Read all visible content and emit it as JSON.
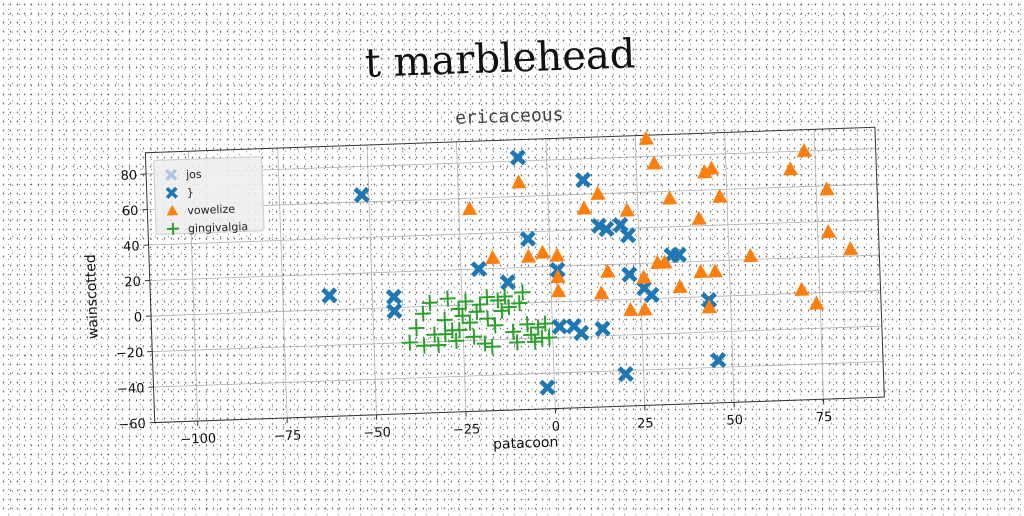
{
  "page": {
    "title": "t marblehead"
  },
  "chart_data": {
    "type": "scatter",
    "title": "ericaceous",
    "xlabel": "patacoon",
    "ylabel": "wainscotted",
    "xlim": [
      -112,
      92
    ],
    "ylim": [
      -60,
      92
    ],
    "xticks": [
      -100,
      -75,
      -50,
      -25,
      0,
      25,
      50,
      75
    ],
    "xtick_labels": [
      "−100",
      "−75",
      "−50",
      "−25",
      "0",
      "25",
      "50",
      "75"
    ],
    "yticks": [
      -60,
      -40,
      -20,
      0,
      20,
      40,
      60,
      80
    ],
    "ytick_labels": [
      "−60",
      "−40",
      "−20",
      "0",
      "20",
      "40",
      "60",
      "80"
    ],
    "grid": true,
    "legend_position": "upper-left",
    "series": [
      {
        "name": "jos",
        "color": "#aec7e8",
        "marker": "X",
        "points": []
      },
      {
        "name": "}",
        "color": "#1f77b4",
        "marker": "X",
        "points": [
          [
            -62,
            8
          ],
          [
            -52,
            64
          ],
          [
            -44,
            6
          ],
          [
            -44,
            -2
          ],
          [
            -20,
            20
          ],
          [
            -12,
            12
          ],
          [
            -8,
            82
          ],
          [
            -6,
            36
          ],
          [
            2,
            18
          ],
          [
            2,
            -14
          ],
          [
            6,
            -14
          ],
          [
            8,
            -18
          ],
          [
            10,
            68
          ],
          [
            14,
            -16
          ],
          [
            14,
            42
          ],
          [
            16,
            40
          ],
          [
            20,
            42
          ],
          [
            22,
            36
          ],
          [
            22,
            14
          ],
          [
            26,
            6
          ],
          [
            28,
            2
          ],
          [
            34,
            24
          ],
          [
            36,
            24
          ],
          [
            20,
            -42
          ],
          [
            44,
            -2
          ],
          [
            46,
            -36
          ],
          [
            -2,
            -48
          ]
        ]
      },
      {
        "name": "vowelize",
        "color": "#ff7f0e",
        "marker": "^",
        "points": [
          [
            -22,
            54
          ],
          [
            -16,
            26
          ],
          [
            -8,
            68
          ],
          [
            -6,
            26
          ],
          [
            -2,
            28
          ],
          [
            2,
            26
          ],
          [
            2,
            6
          ],
          [
            2,
            14
          ],
          [
            10,
            52
          ],
          [
            14,
            60
          ],
          [
            16,
            16
          ],
          [
            14,
            4
          ],
          [
            22,
            50
          ],
          [
            28,
            90
          ],
          [
            26,
            12
          ],
          [
            30,
            76
          ],
          [
            30,
            20
          ],
          [
            32,
            20
          ],
          [
            34,
            56
          ],
          [
            36,
            6
          ],
          [
            42,
            44
          ],
          [
            44,
            70
          ],
          [
            46,
            72
          ],
          [
            48,
            56
          ],
          [
            46,
            14
          ],
          [
            56,
            22
          ],
          [
            68,
            70
          ],
          [
            72,
            80
          ],
          [
            78,
            58
          ],
          [
            78,
            34
          ],
          [
            84,
            24
          ],
          [
            70,
            2
          ],
          [
            74,
            -6
          ],
          [
            22,
            -6
          ],
          [
            26,
            -6
          ],
          [
            42,
            14
          ],
          [
            44,
            -6
          ]
        ]
      },
      {
        "name": "gingivalgia",
        "color": "#2ca02c",
        "marker": "+",
        "points": [
          [
            -40,
            -20
          ],
          [
            -38,
            -12
          ],
          [
            -36,
            -4
          ],
          [
            -34,
            2
          ],
          [
            -33,
            -16
          ],
          [
            -32,
            -22
          ],
          [
            -30,
            -8
          ],
          [
            -29,
            4
          ],
          [
            -28,
            -14
          ],
          [
            -27,
            -20
          ],
          [
            -26,
            -2
          ],
          [
            -25,
            -6
          ],
          [
            -24,
            2
          ],
          [
            -23,
            -10
          ],
          [
            -22,
            -18
          ],
          [
            -21,
            -4
          ],
          [
            -20,
            0
          ],
          [
            -19,
            -22
          ],
          [
            -18,
            -8
          ],
          [
            -17,
            -24
          ],
          [
            -16,
            -12
          ],
          [
            -15,
            2
          ],
          [
            -14,
            -4
          ],
          [
            -13,
            4
          ],
          [
            -12,
            -2
          ],
          [
            -11,
            -16
          ],
          [
            -10,
            -22
          ],
          [
            -9,
            0
          ],
          [
            -8,
            6
          ],
          [
            -7,
            -12
          ],
          [
            -6,
            -18
          ],
          [
            -5,
            -22
          ],
          [
            -4,
            -14
          ],
          [
            -3,
            -20
          ],
          [
            -2,
            -12
          ],
          [
            -1,
            -20
          ],
          [
            -30,
            -16
          ],
          [
            -36,
            -22
          ],
          [
            -26,
            -14
          ],
          [
            -18,
            4
          ]
        ]
      }
    ]
  }
}
